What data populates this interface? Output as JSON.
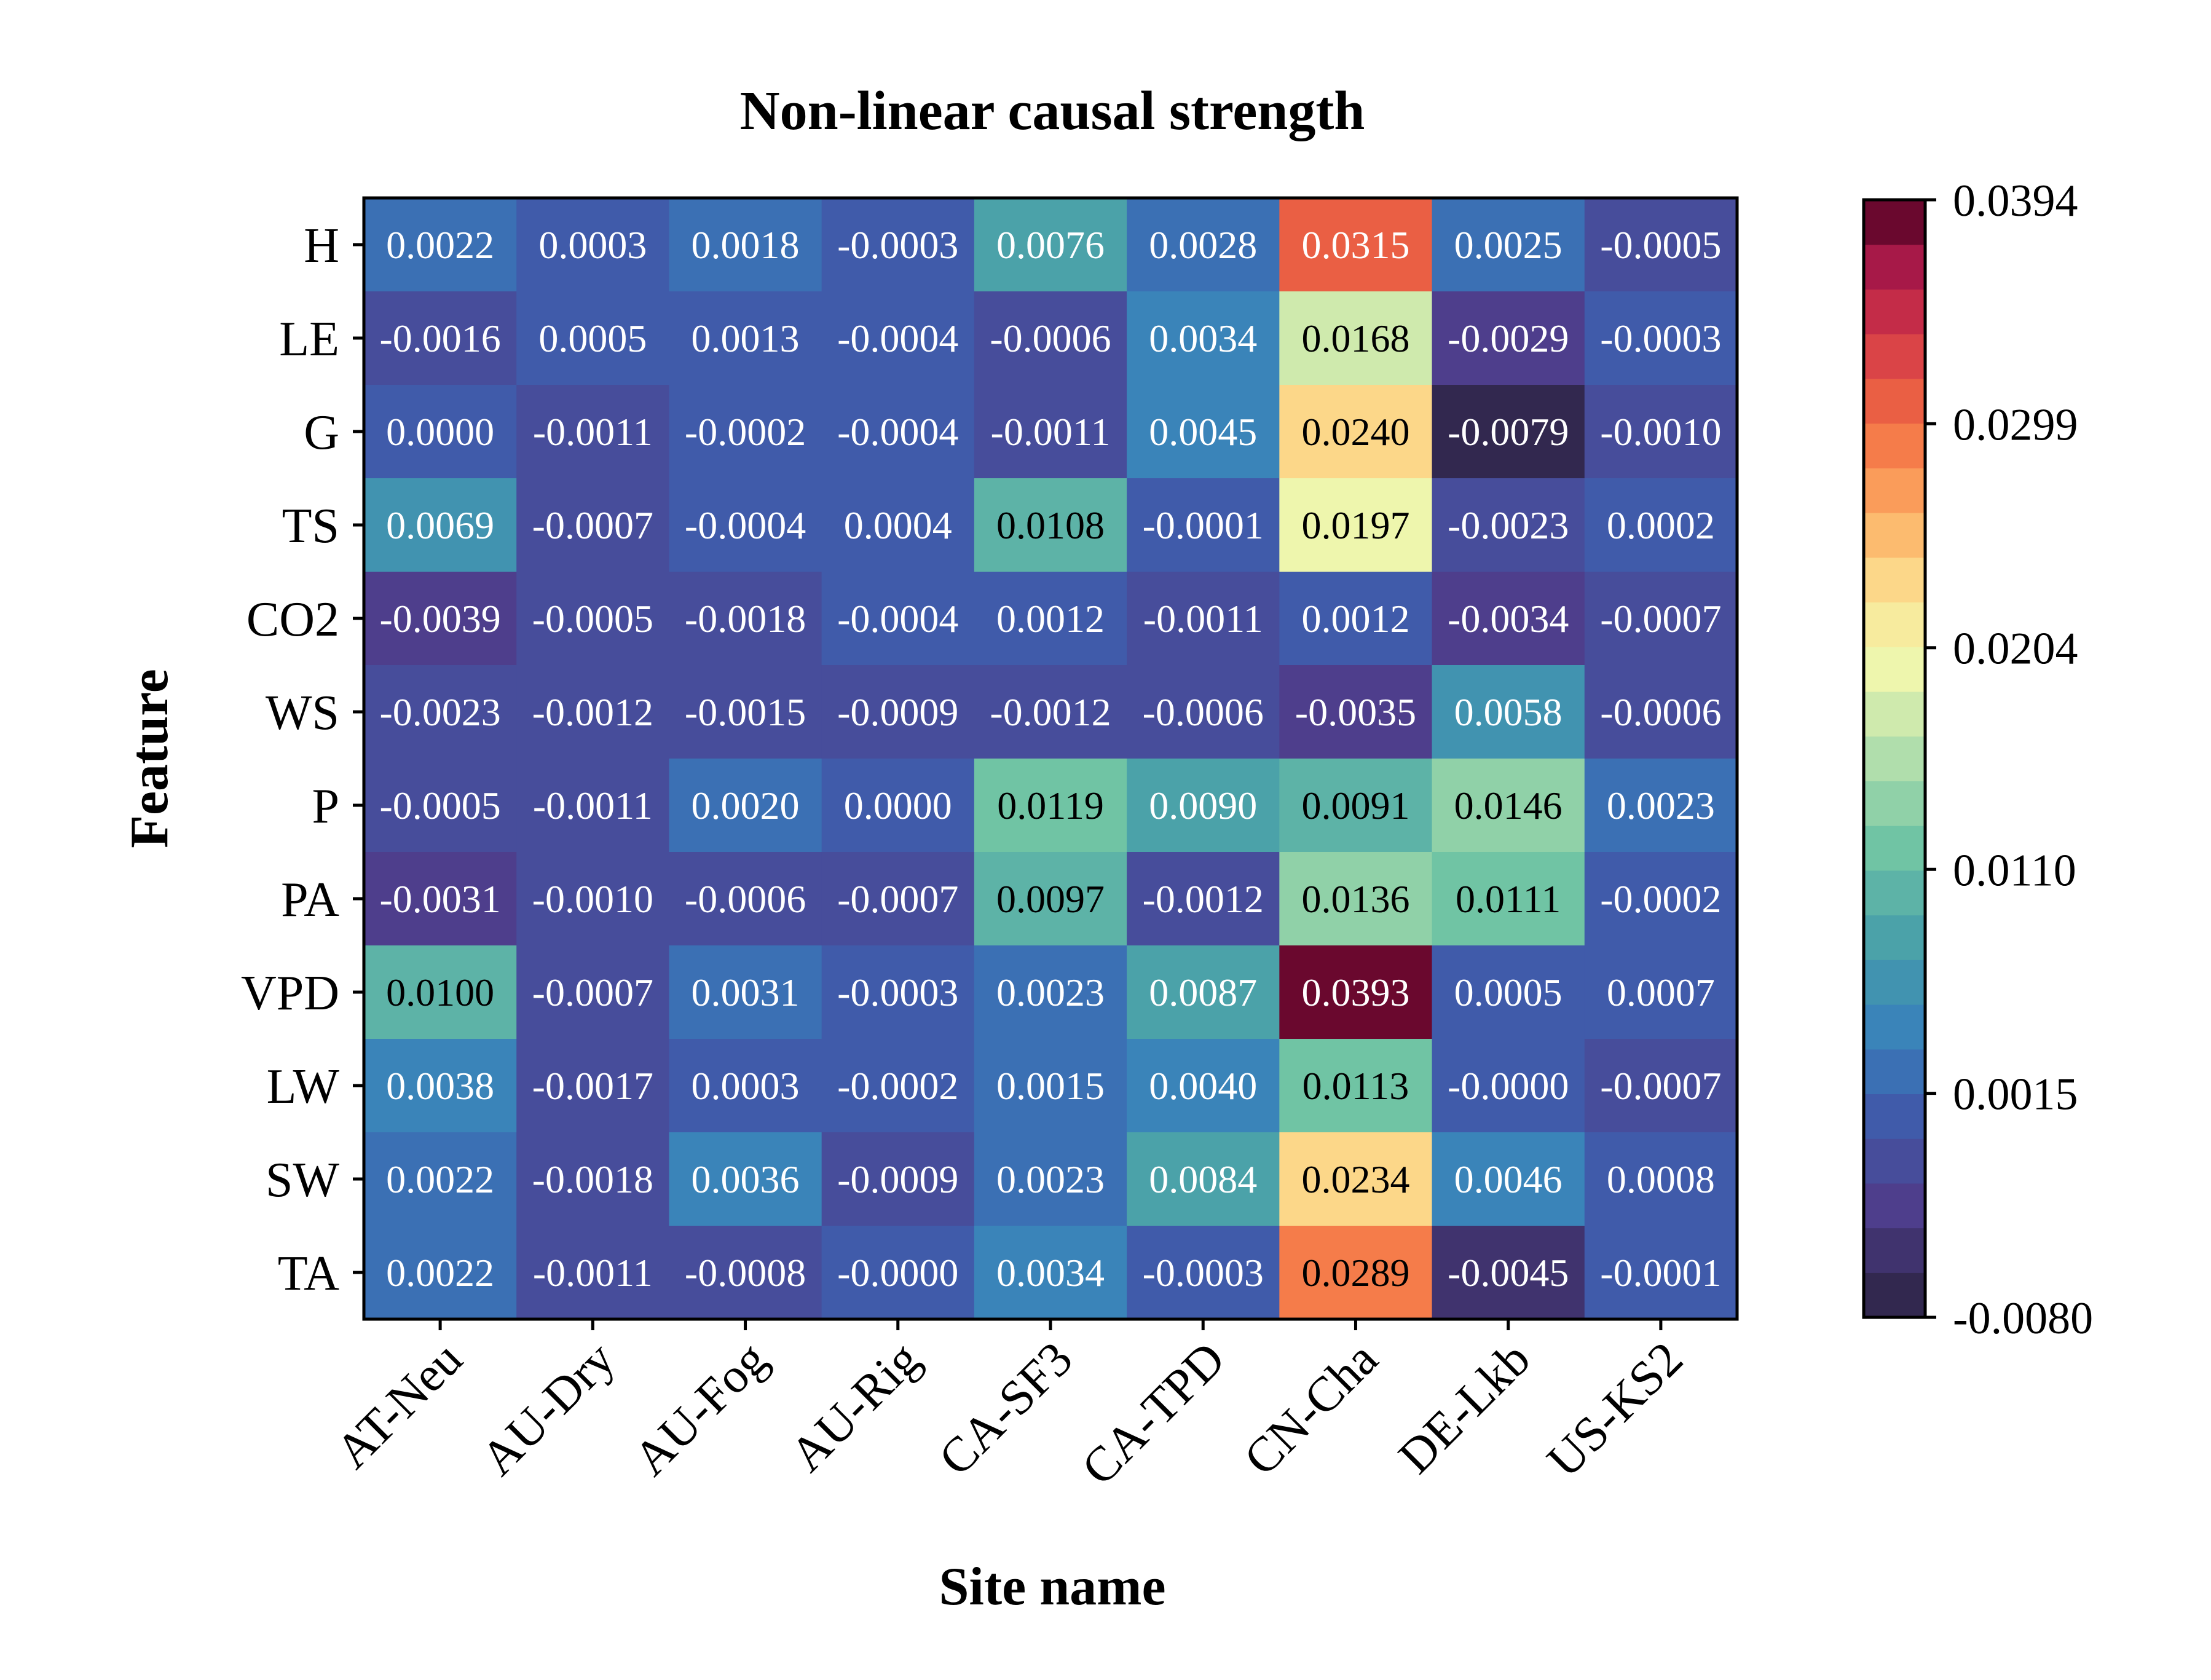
{
  "chart_data": {
    "type": "heatmap",
    "title": "Non-linear causal strength",
    "xlabel": "Site name",
    "ylabel": "Feature",
    "x": [
      "AT-Neu",
      "AU-Dry",
      "AU-Fog",
      "AU-Rig",
      "CA-SF3",
      "CA-TPD",
      "CN-Cha",
      "DE-Lkb",
      "US-KS2"
    ],
    "y": [
      "H",
      "LE",
      "G",
      "TS",
      "CO2",
      "WS",
      "P",
      "PA",
      "VPD",
      "LW",
      "SW",
      "TA"
    ],
    "values": [
      [
        0.0022,
        0.0003,
        0.0018,
        -0.0003,
        0.0076,
        0.0028,
        0.0315,
        0.0025,
        -0.0005
      ],
      [
        -0.0016,
        0.0005,
        0.0013,
        -0.0004,
        -0.0006,
        0.0034,
        0.0168,
        -0.0029,
        -0.0003
      ],
      [
        0.0,
        -0.0011,
        -0.0002,
        -0.0004,
        -0.0011,
        0.0045,
        0.024,
        -0.0079,
        -0.001
      ],
      [
        0.0069,
        -0.0007,
        -0.0004,
        0.0004,
        0.0108,
        -0.0001,
        0.0197,
        -0.0023,
        0.0002
      ],
      [
        -0.0039,
        -0.0005,
        -0.0018,
        -0.0004,
        0.0012,
        -0.0011,
        0.0012,
        -0.0034,
        -0.0007
      ],
      [
        -0.0023,
        -0.0012,
        -0.0015,
        -0.0009,
        -0.0012,
        -0.0006,
        -0.0035,
        0.0058,
        -0.0006
      ],
      [
        -0.0005,
        -0.0011,
        0.002,
        0.0,
        0.0119,
        0.009,
        0.0091,
        0.0146,
        0.0023
      ],
      [
        -0.0031,
        -0.001,
        -0.0006,
        -0.0007,
        0.0097,
        -0.0012,
        0.0136,
        0.0111,
        -0.0002
      ],
      [
        0.01,
        -0.0007,
        0.0031,
        -0.0003,
        0.0023,
        0.0087,
        0.0393,
        0.0005,
        0.0007
      ],
      [
        0.0038,
        -0.0017,
        0.0003,
        -0.0002,
        0.0015,
        0.004,
        0.0113,
        -0.0,
        -0.0007
      ],
      [
        0.0022,
        -0.0018,
        0.0036,
        -0.0009,
        0.0023,
        0.0084,
        0.0234,
        0.0046,
        0.0008
      ],
      [
        0.0022,
        -0.0011,
        -0.0008,
        -0.0,
        0.0034,
        -0.0003,
        0.0289,
        -0.0045,
        -0.0001
      ]
    ],
    "value_labels": [
      [
        "0.0022",
        "0.0003",
        "0.0018",
        "-0.0003",
        "0.0076",
        "0.0028",
        "0.0315",
        "0.0025",
        "-0.0005"
      ],
      [
        "-0.0016",
        "0.0005",
        "0.0013",
        "-0.0004",
        "-0.0006",
        "0.0034",
        "0.0168",
        "-0.0029",
        "-0.0003"
      ],
      [
        "0.0000",
        "-0.0011",
        "-0.0002",
        "-0.0004",
        "-0.0011",
        "0.0045",
        "0.0240",
        "-0.0079",
        "-0.0010"
      ],
      [
        "0.0069",
        "-0.0007",
        "-0.0004",
        "0.0004",
        "0.0108",
        "-0.0001",
        "0.0197",
        "-0.0023",
        "0.0002"
      ],
      [
        "-0.0039",
        "-0.0005",
        "-0.0018",
        "-0.0004",
        "0.0012",
        "-0.0011",
        "0.0012",
        "-0.0034",
        "-0.0007"
      ],
      [
        "-0.0023",
        "-0.0012",
        "-0.0015",
        "-0.0009",
        "-0.0012",
        "-0.0006",
        "-0.0035",
        "0.0058",
        "-0.0006"
      ],
      [
        "-0.0005",
        "-0.0011",
        "0.0020",
        "0.0000",
        "0.0119",
        "0.0090",
        "0.0091",
        "0.0146",
        "0.0023"
      ],
      [
        "-0.0031",
        "-0.0010",
        "-0.0006",
        "-0.0007",
        "0.0097",
        "-0.0012",
        "0.0136",
        "0.0111",
        "-0.0002"
      ],
      [
        "0.0100",
        "-0.0007",
        "0.0031",
        "-0.0003",
        "0.0023",
        "0.0087",
        "0.0393",
        "0.0005",
        "0.0007"
      ],
      [
        "0.0038",
        "-0.0017",
        "0.0003",
        "-0.0002",
        "0.0015",
        "0.0040",
        "0.0113",
        "-0.0000",
        "-0.0007"
      ],
      [
        "0.0022",
        "-0.0018",
        "0.0036",
        "-0.0009",
        "0.0023",
        "0.0084",
        "0.0234",
        "0.0046",
        "0.0008"
      ],
      [
        "0.0022",
        "-0.0011",
        "-0.0008",
        "-0.0000",
        "0.0034",
        "-0.0003",
        "0.0289",
        "-0.0045",
        "-0.0001"
      ]
    ],
    "colorbar": {
      "min": -0.008,
      "max": 0.0394,
      "ticks": [
        -0.008,
        0.0015,
        0.011,
        0.0204,
        0.0299,
        0.0394
      ],
      "tick_labels": [
        "-0.0080",
        "0.0015",
        "0.0110",
        "0.0204",
        "0.0299",
        "0.0394"
      ],
      "levels": 25,
      "colormap": "spectral-reversed"
    }
  }
}
